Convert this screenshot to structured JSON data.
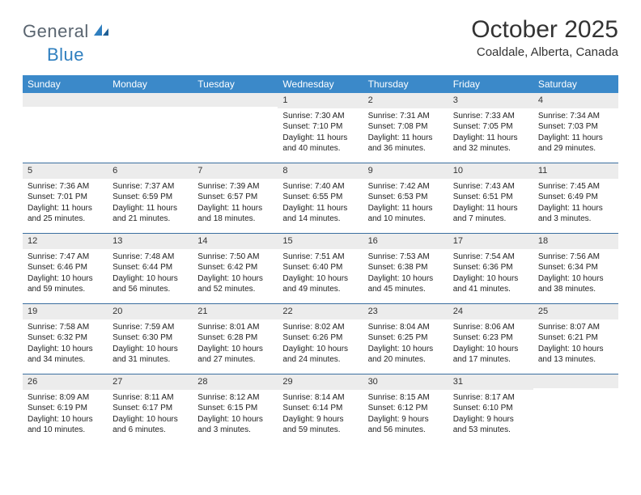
{
  "logo": {
    "text_a": "General",
    "text_b": "Blue"
  },
  "title": "October 2025",
  "location": "Coaldale, Alberta, Canada",
  "colors": {
    "header_bg": "#3b89c9",
    "header_text": "#ffffff",
    "daynum_bg": "#ececec",
    "week_border": "#3b6fa0",
    "logo_gray": "#5a6570",
    "logo_blue": "#2f7fbf"
  },
  "dow": [
    "Sunday",
    "Monday",
    "Tuesday",
    "Wednesday",
    "Thursday",
    "Friday",
    "Saturday"
  ],
  "weeks": [
    [
      null,
      null,
      null,
      {
        "n": "1",
        "sr": "7:30 AM",
        "ss": "7:10 PM",
        "dl": "11 hours and 40 minutes."
      },
      {
        "n": "2",
        "sr": "7:31 AM",
        "ss": "7:08 PM",
        "dl": "11 hours and 36 minutes."
      },
      {
        "n": "3",
        "sr": "7:33 AM",
        "ss": "7:05 PM",
        "dl": "11 hours and 32 minutes."
      },
      {
        "n": "4",
        "sr": "7:34 AM",
        "ss": "7:03 PM",
        "dl": "11 hours and 29 minutes."
      }
    ],
    [
      {
        "n": "5",
        "sr": "7:36 AM",
        "ss": "7:01 PM",
        "dl": "11 hours and 25 minutes."
      },
      {
        "n": "6",
        "sr": "7:37 AM",
        "ss": "6:59 PM",
        "dl": "11 hours and 21 minutes."
      },
      {
        "n": "7",
        "sr": "7:39 AM",
        "ss": "6:57 PM",
        "dl": "11 hours and 18 minutes."
      },
      {
        "n": "8",
        "sr": "7:40 AM",
        "ss": "6:55 PM",
        "dl": "11 hours and 14 minutes."
      },
      {
        "n": "9",
        "sr": "7:42 AM",
        "ss": "6:53 PM",
        "dl": "11 hours and 10 minutes."
      },
      {
        "n": "10",
        "sr": "7:43 AM",
        "ss": "6:51 PM",
        "dl": "11 hours and 7 minutes."
      },
      {
        "n": "11",
        "sr": "7:45 AM",
        "ss": "6:49 PM",
        "dl": "11 hours and 3 minutes."
      }
    ],
    [
      {
        "n": "12",
        "sr": "7:47 AM",
        "ss": "6:46 PM",
        "dl": "10 hours and 59 minutes."
      },
      {
        "n": "13",
        "sr": "7:48 AM",
        "ss": "6:44 PM",
        "dl": "10 hours and 56 minutes."
      },
      {
        "n": "14",
        "sr": "7:50 AM",
        "ss": "6:42 PM",
        "dl": "10 hours and 52 minutes."
      },
      {
        "n": "15",
        "sr": "7:51 AM",
        "ss": "6:40 PM",
        "dl": "10 hours and 49 minutes."
      },
      {
        "n": "16",
        "sr": "7:53 AM",
        "ss": "6:38 PM",
        "dl": "10 hours and 45 minutes."
      },
      {
        "n": "17",
        "sr": "7:54 AM",
        "ss": "6:36 PM",
        "dl": "10 hours and 41 minutes."
      },
      {
        "n": "18",
        "sr": "7:56 AM",
        "ss": "6:34 PM",
        "dl": "10 hours and 38 minutes."
      }
    ],
    [
      {
        "n": "19",
        "sr": "7:58 AM",
        "ss": "6:32 PM",
        "dl": "10 hours and 34 minutes."
      },
      {
        "n": "20",
        "sr": "7:59 AM",
        "ss": "6:30 PM",
        "dl": "10 hours and 31 minutes."
      },
      {
        "n": "21",
        "sr": "8:01 AM",
        "ss": "6:28 PM",
        "dl": "10 hours and 27 minutes."
      },
      {
        "n": "22",
        "sr": "8:02 AM",
        "ss": "6:26 PM",
        "dl": "10 hours and 24 minutes."
      },
      {
        "n": "23",
        "sr": "8:04 AM",
        "ss": "6:25 PM",
        "dl": "10 hours and 20 minutes."
      },
      {
        "n": "24",
        "sr": "8:06 AM",
        "ss": "6:23 PM",
        "dl": "10 hours and 17 minutes."
      },
      {
        "n": "25",
        "sr": "8:07 AM",
        "ss": "6:21 PM",
        "dl": "10 hours and 13 minutes."
      }
    ],
    [
      {
        "n": "26",
        "sr": "8:09 AM",
        "ss": "6:19 PM",
        "dl": "10 hours and 10 minutes."
      },
      {
        "n": "27",
        "sr": "8:11 AM",
        "ss": "6:17 PM",
        "dl": "10 hours and 6 minutes."
      },
      {
        "n": "28",
        "sr": "8:12 AM",
        "ss": "6:15 PM",
        "dl": "10 hours and 3 minutes."
      },
      {
        "n": "29",
        "sr": "8:14 AM",
        "ss": "6:14 PM",
        "dl": "9 hours and 59 minutes."
      },
      {
        "n": "30",
        "sr": "8:15 AM",
        "ss": "6:12 PM",
        "dl": "9 hours and 56 minutes."
      },
      {
        "n": "31",
        "sr": "8:17 AM",
        "ss": "6:10 PM",
        "dl": "9 hours and 53 minutes."
      },
      null
    ]
  ],
  "labels": {
    "sunrise": "Sunrise:",
    "sunset": "Sunset:",
    "daylight": "Daylight:"
  }
}
